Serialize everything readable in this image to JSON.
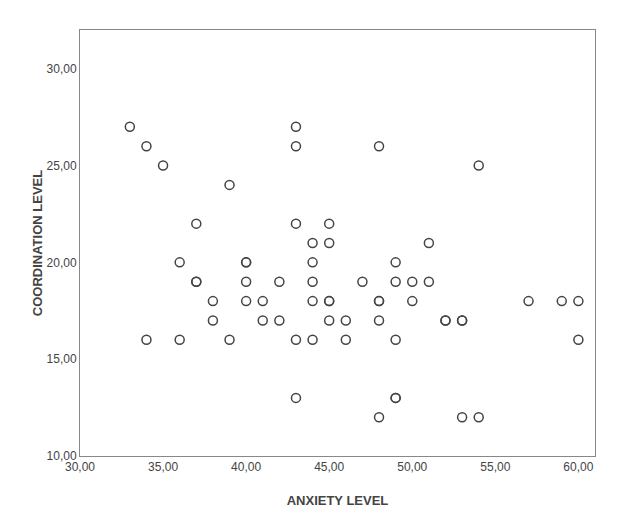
{
  "chart_data": {
    "type": "scatter",
    "x": [
      33,
      34,
      35,
      37,
      37,
      38,
      39,
      39,
      40,
      40,
      40,
      43,
      43,
      43,
      44,
      44,
      44,
      45,
      45,
      45,
      45,
      45,
      46,
      46,
      47,
      48,
      48,
      48,
      49,
      49,
      49,
      50,
      50,
      51,
      51,
      52,
      52,
      53,
      53,
      54,
      57,
      59,
      60,
      34,
      36,
      36,
      37,
      38,
      40,
      41,
      41,
      42,
      42,
      43,
      44,
      44,
      48,
      49,
      53,
      60,
      43,
      48,
      49,
      54
    ],
    "values": [
      27,
      26,
      25,
      22,
      19,
      18,
      24,
      16,
      20,
      19,
      18,
      27,
      26,
      22,
      21,
      20,
      19,
      22,
      21,
      18,
      18,
      17,
      17,
      16,
      19,
      18,
      18,
      17,
      20,
      19,
      16,
      19,
      18,
      21,
      19,
      17,
      17,
      17,
      17,
      25,
      18,
      18,
      18,
      16,
      20,
      16,
      19,
      17,
      20,
      18,
      17,
      19,
      17,
      16,
      18,
      16,
      26,
      13,
      12,
      16,
      13,
      12,
      13,
      12
    ],
    "xlabel": "ANXIETY LEVEL",
    "ylabel": "COORDINATION LEVEL",
    "xlim": [
      30,
      61
    ],
    "ylim": [
      10,
      32
    ],
    "xticks": [
      {
        "value": 30,
        "label": "30,00"
      },
      {
        "value": 35,
        "label": "35,00"
      },
      {
        "value": 40,
        "label": "40,00"
      },
      {
        "value": 45,
        "label": "45,00"
      },
      {
        "value": 50,
        "label": "50,00"
      },
      {
        "value": 55,
        "label": "55,00"
      },
      {
        "value": 60,
        "label": "60,00"
      }
    ],
    "yticks": [
      {
        "value": 10,
        "label": "10,00"
      },
      {
        "value": 15,
        "label": "15,00"
      },
      {
        "value": 20,
        "label": "20,00"
      },
      {
        "value": 25,
        "label": "25,00"
      },
      {
        "value": 30,
        "label": "30,00"
      }
    ],
    "color": "#444444",
    "marker": "circle-open",
    "grid": false
  }
}
